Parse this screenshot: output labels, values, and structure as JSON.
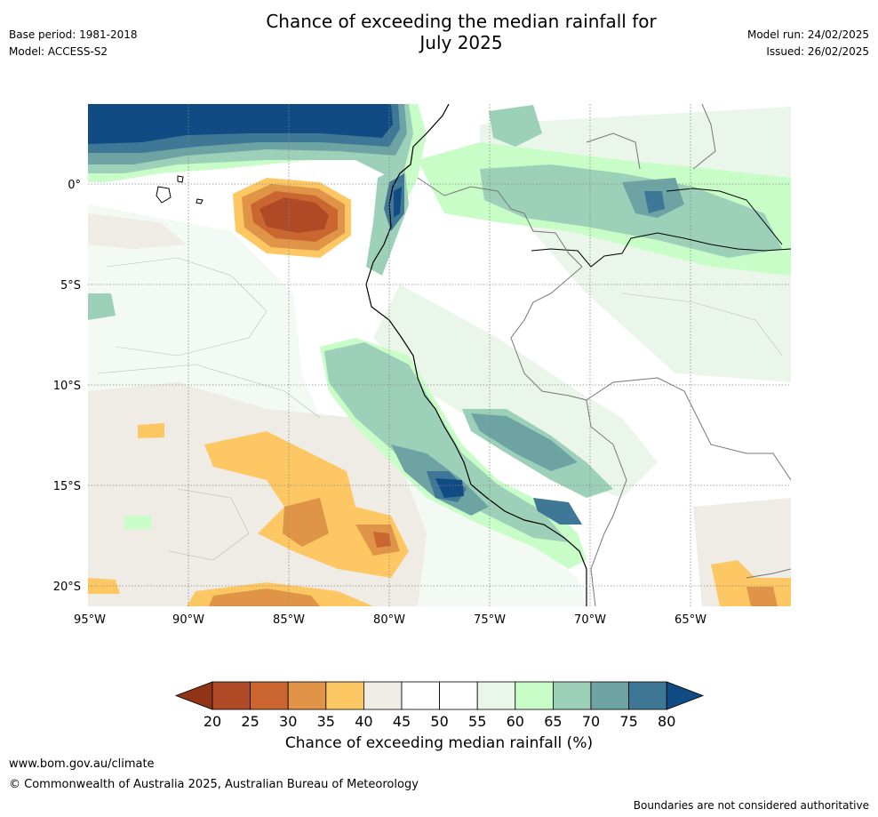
{
  "title_line1": "Chance of exceeding the median rainfall for",
  "title_line2": "July 2025",
  "base_period": "Base period: 1981-2018",
  "model": "Model: ACCESS-S2",
  "model_run": "Model run: 24/02/2025",
  "issued": "Issued: 26/02/2025",
  "lat_labels": [
    "0°",
    "5°S",
    "10°S",
    "15°S",
    "20°S"
  ],
  "lon_labels": [
    "95°W",
    "90°W",
    "85°W",
    "80°W",
    "75°W",
    "70°W",
    "65°W"
  ],
  "colorbar": {
    "label": "Chance of exceeding median rainfall (%)",
    "ticks": [
      "20",
      "25",
      "30",
      "35",
      "40",
      "45",
      "50",
      "55",
      "60",
      "65",
      "70",
      "75",
      "80"
    ],
    "colors": [
      "#8f3416",
      "#b04a26",
      "#cc6631",
      "#df9447",
      "#fdc763",
      "#efebe5",
      "#ffffff",
      "#ffffff",
      "#eaf6ea",
      "#c8fdc7",
      "#9dd0b9",
      "#6ea3a4",
      "#3e7896",
      "#114b84"
    ]
  },
  "footer": {
    "site": "www.bom.gov.au/climate",
    "copyright": "© Commonwealth of Australia 2025, Australian Bureau of Meteorology",
    "boundaries": "Boundaries are not considered authoritative"
  }
}
